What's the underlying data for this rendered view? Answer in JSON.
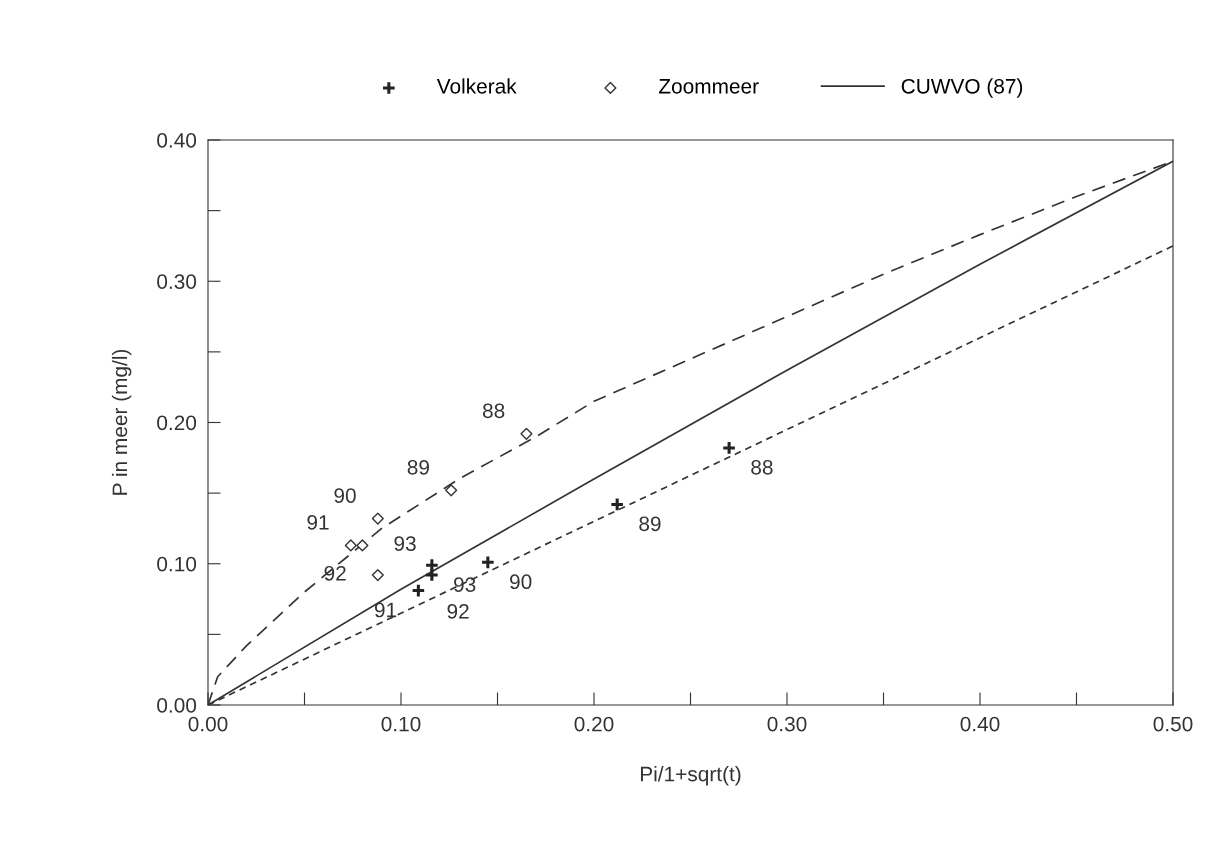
{
  "chart_data": {
    "type": "scatter",
    "xlabel": "Pi/1+sqrt(t)",
    "ylabel": "P in meer (mg/l)",
    "xlim": [
      0,
      0.5
    ],
    "ylim": [
      0,
      0.4
    ],
    "xticks": [
      {
        "value": 0,
        "label": "0.00"
      },
      {
        "value": 0.05,
        "label": null
      },
      {
        "value": 0.1,
        "label": "0.10"
      },
      {
        "value": 0.15,
        "label": null
      },
      {
        "value": 0.2,
        "label": "0.20"
      },
      {
        "value": 0.25,
        "label": null
      },
      {
        "value": 0.3,
        "label": "0.30"
      },
      {
        "value": 0.35,
        "label": null
      },
      {
        "value": 0.4,
        "label": "0.40"
      },
      {
        "value": 0.45,
        "label": null
      },
      {
        "value": 0.5,
        "label": "0.50"
      }
    ],
    "yticks": [
      {
        "value": 0,
        "label": "0.00"
      },
      {
        "value": 0.05,
        "label": null
      },
      {
        "value": 0.1,
        "label": "0.10"
      },
      {
        "value": 0.15,
        "label": null
      },
      {
        "value": 0.2,
        "label": "0.20"
      },
      {
        "value": 0.25,
        "label": null
      },
      {
        "value": 0.3,
        "label": "0.30"
      },
      {
        "value": 0.35,
        "label": null
      },
      {
        "value": 0.4,
        "label": "0.40"
      }
    ],
    "grid": false,
    "legend": "top",
    "series": [
      {
        "name": "Volkerak",
        "marker": "cross",
        "color": "#222222",
        "x": [
          0.27,
          0.212,
          0.145,
          0.109,
          0.116,
          0.116
        ],
        "values": [
          0.182,
          0.142,
          0.101,
          0.081,
          0.092,
          0.099
        ]
      },
      {
        "name": "Zoommeer",
        "marker": "diamond",
        "color": "#333333",
        "x": [
          0.165,
          0.126,
          0.088,
          0.074,
          0.088,
          0.08
        ],
        "values": [
          0.192,
          0.152,
          0.132,
          0.113,
          0.092,
          0.113
        ]
      },
      {
        "name": "CUWVO (87)",
        "type": "line",
        "line_style": "solid",
        "color": "#333333",
        "x": [
          0,
          0.1,
          0.2,
          0.3,
          0.4,
          0.5
        ],
        "values": [
          0,
          0.082,
          0.16,
          0.237,
          0.312,
          0.385
        ]
      },
      {
        "type": "line",
        "line_style": "dashed",
        "color": "#333333",
        "x": [
          0,
          0.005,
          0.02,
          0.05,
          0.09,
          0.13,
          0.17,
          0.2,
          0.25,
          0.3,
          0.35,
          0.4,
          0.45,
          0.5
        ],
        "values": [
          0,
          0.02,
          0.042,
          0.08,
          0.125,
          0.16,
          0.19,
          0.215,
          0.245,
          0.275,
          0.305,
          0.333,
          0.36,
          0.385
        ]
      },
      {
        "type": "line",
        "line_style": "dotted",
        "color": "#333333",
        "x": [
          0,
          0.5
        ],
        "values": [
          0,
          0.325
        ]
      }
    ],
    "annotations": [
      {
        "text": "88",
        "x": 0.165,
        "y": 0.192
      },
      {
        "text": "89",
        "x": 0.126,
        "y": 0.152
      },
      {
        "text": "90",
        "x": 0.088,
        "y": 0.132
      },
      {
        "text": "91",
        "x": 0.074,
        "y": 0.113
      },
      {
        "text": "93",
        "x": 0.08,
        "y": 0.113
      },
      {
        "text": "92",
        "x": 0.088,
        "y": 0.092
      },
      {
        "text": "88",
        "x": 0.27,
        "y": 0.182
      },
      {
        "text": "89",
        "x": 0.212,
        "y": 0.142
      },
      {
        "text": "90",
        "x": 0.145,
        "y": 0.101
      },
      {
        "text": "93",
        "x": 0.116,
        "y": 0.099
      },
      {
        "text": "92",
        "x": 0.116,
        "y": 0.092
      },
      {
        "text": "91",
        "x": 0.109,
        "y": 0.081
      }
    ]
  }
}
